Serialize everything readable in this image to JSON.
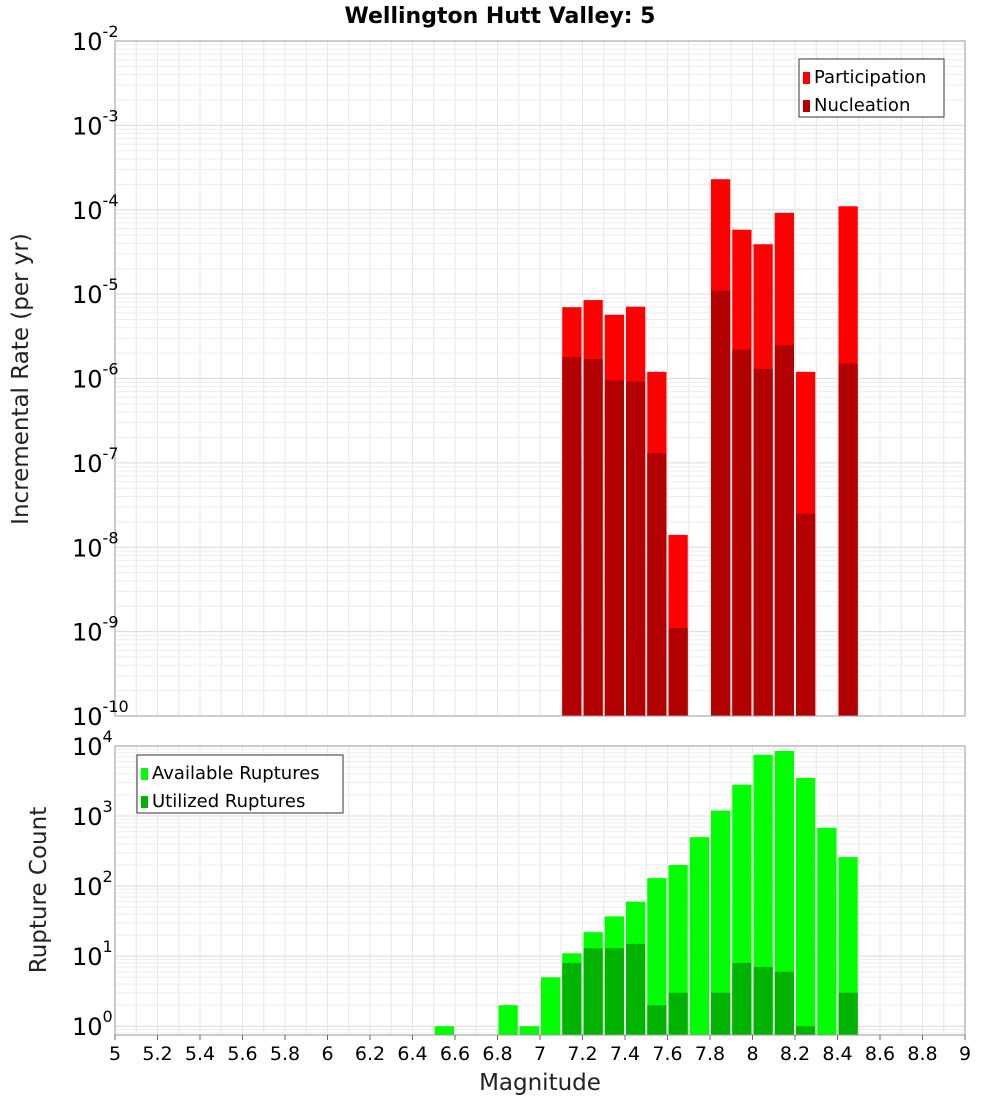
{
  "chart_data": [
    {
      "type": "bar",
      "title": "Wellington Hutt Valley: 5",
      "xlabel": "Magnitude",
      "ylabel": "Incremental Rate (per yr)",
      "y_scale": "log",
      "ylim": [
        1e-10,
        0.01
      ],
      "xlim": [
        5,
        9
      ],
      "grid": true,
      "legend_position": "top-right",
      "y_ticks": [
        {
          "base": "10",
          "exp": "-10",
          "value": 1e-10
        },
        {
          "base": "10",
          "exp": "-9",
          "value": 1e-09
        },
        {
          "base": "10",
          "exp": "-8",
          "value": 1e-08
        },
        {
          "base": "10",
          "exp": "-7",
          "value": 1e-07
        },
        {
          "base": "10",
          "exp": "-6",
          "value": 1e-06
        },
        {
          "base": "10",
          "exp": "-5",
          "value": 1e-05
        },
        {
          "base": "10",
          "exp": "-4",
          "value": 0.0001
        },
        {
          "base": "10",
          "exp": "-3",
          "value": 0.001
        },
        {
          "base": "10",
          "exp": "-2",
          "value": 0.01
        }
      ],
      "series": [
        {
          "name": "Participation",
          "color": "#ff0000",
          "points": [
            {
              "x": 7.15,
              "y": 7e-06
            },
            {
              "x": 7.25,
              "y": 8.5e-06
            },
            {
              "x": 7.35,
              "y": 5.7e-06
            },
            {
              "x": 7.45,
              "y": 7.1e-06
            },
            {
              "x": 7.55,
              "y": 1.2e-06
            },
            {
              "x": 7.65,
              "y": 1.4e-08
            },
            {
              "x": 7.85,
              "y": 0.00023
            },
            {
              "x": 7.95,
              "y": 5.8e-05
            },
            {
              "x": 8.05,
              "y": 3.9e-05
            },
            {
              "x": 8.15,
              "y": 9.2e-05
            },
            {
              "x": 8.25,
              "y": 1.2e-06
            },
            {
              "x": 8.45,
              "y": 0.00011
            }
          ]
        },
        {
          "name": "Nucleation",
          "color": "#b30000",
          "points": [
            {
              "x": 7.15,
              "y": 1.8e-06
            },
            {
              "x": 7.25,
              "y": 1.7e-06
            },
            {
              "x": 7.35,
              "y": 9.5e-07
            },
            {
              "x": 7.45,
              "y": 9.2e-07
            },
            {
              "x": 7.55,
              "y": 1.3e-07
            },
            {
              "x": 7.65,
              "y": 1.1e-09
            },
            {
              "x": 7.85,
              "y": 1.1e-05
            },
            {
              "x": 7.95,
              "y": 2.2e-06
            },
            {
              "x": 8.05,
              "y": 1.3e-06
            },
            {
              "x": 8.15,
              "y": 2.5e-06
            },
            {
              "x": 8.25,
              "y": 2.5e-08
            },
            {
              "x": 8.45,
              "y": 1.5e-06
            }
          ]
        }
      ]
    },
    {
      "type": "bar",
      "xlabel": "Magnitude",
      "ylabel": "Rupture Count",
      "y_scale": "log",
      "ylim": [
        0.75,
        10000
      ],
      "xlim": [
        5,
        9
      ],
      "grid": true,
      "legend_position": "top-left",
      "y_ticks": [
        {
          "base": "10",
          "exp": "0",
          "value": 1
        },
        {
          "base": "10",
          "exp": "1",
          "value": 10
        },
        {
          "base": "10",
          "exp": "2",
          "value": 100
        },
        {
          "base": "10",
          "exp": "3",
          "value": 1000
        },
        {
          "base": "10",
          "exp": "4",
          "value": 10000
        }
      ],
      "x_ticks": [
        "5",
        "5.2",
        "5.4",
        "5.6",
        "5.8",
        "6",
        "6.2",
        "6.4",
        "6.6",
        "6.8",
        "7",
        "7.2",
        "7.4",
        "7.6",
        "7.8",
        "8",
        "8.2",
        "8.4",
        "8.6",
        "8.8",
        "9"
      ],
      "series": [
        {
          "name": "Available Ruptures",
          "color": "#00ff00",
          "points": [
            {
              "x": 6.55,
              "y": 1
            },
            {
              "x": 6.85,
              "y": 2
            },
            {
              "x": 6.95,
              "y": 1
            },
            {
              "x": 7.05,
              "y": 5
            },
            {
              "x": 7.15,
              "y": 11
            },
            {
              "x": 7.25,
              "y": 22
            },
            {
              "x": 7.35,
              "y": 37
            },
            {
              "x": 7.45,
              "y": 60
            },
            {
              "x": 7.55,
              "y": 130
            },
            {
              "x": 7.65,
              "y": 200
            },
            {
              "x": 7.75,
              "y": 500
            },
            {
              "x": 7.85,
              "y": 1200
            },
            {
              "x": 7.95,
              "y": 2800
            },
            {
              "x": 8.05,
              "y": 7500
            },
            {
              "x": 8.15,
              "y": 8500
            },
            {
              "x": 8.25,
              "y": 3500
            },
            {
              "x": 8.35,
              "y": 680
            },
            {
              "x": 8.45,
              "y": 260
            }
          ]
        },
        {
          "name": "Utilized Ruptures",
          "color": "#00b300",
          "points": [
            {
              "x": 7.15,
              "y": 8
            },
            {
              "x": 7.25,
              "y": 13
            },
            {
              "x": 7.35,
              "y": 13
            },
            {
              "x": 7.45,
              "y": 15
            },
            {
              "x": 7.55,
              "y": 2
            },
            {
              "x": 7.65,
              "y": 3
            },
            {
              "x": 7.85,
              "y": 3
            },
            {
              "x": 7.95,
              "y": 8
            },
            {
              "x": 8.05,
              "y": 7
            },
            {
              "x": 8.15,
              "y": 6
            },
            {
              "x": 8.25,
              "y": 1
            },
            {
              "x": 8.45,
              "y": 3
            }
          ]
        }
      ]
    }
  ]
}
